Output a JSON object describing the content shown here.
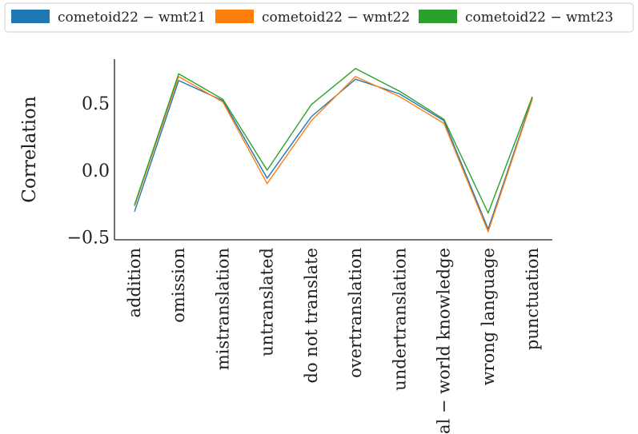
{
  "chart_data": {
    "type": "line",
    "categories": [
      "addition",
      "omission",
      "mistranslation",
      "untranslated",
      "do not translate",
      "overtranslation",
      "undertranslation",
      "real − world knowledge",
      "wrong language",
      "punctuation"
    ],
    "series": [
      {
        "name": "cometoid22 − wmt21",
        "color": "#1f77b4",
        "values": [
          -0.31,
          0.67,
          0.52,
          -0.06,
          0.4,
          0.68,
          0.57,
          0.37,
          -0.44,
          0.54
        ]
      },
      {
        "name": "cometoid22 − wmt22",
        "color": "#ff7f0e",
        "values": [
          -0.27,
          0.7,
          0.51,
          -0.1,
          0.37,
          0.7,
          0.55,
          0.35,
          -0.46,
          0.53
        ]
      },
      {
        "name": "cometoid22 − wmt23",
        "color": "#2ca02c",
        "values": [
          -0.26,
          0.72,
          0.53,
          0.0,
          0.49,
          0.76,
          0.59,
          0.38,
          -0.32,
          0.55
        ]
      }
    ],
    "ylabel": "Correlation",
    "xlabel": "",
    "ylim": [
      -0.52,
      0.83
    ],
    "yticks": [
      -0.5,
      0.0,
      0.5
    ],
    "ytick_labels": [
      "−0.5",
      "0.0",
      "0.5"
    ],
    "grid": false,
    "legend_position": "top"
  }
}
